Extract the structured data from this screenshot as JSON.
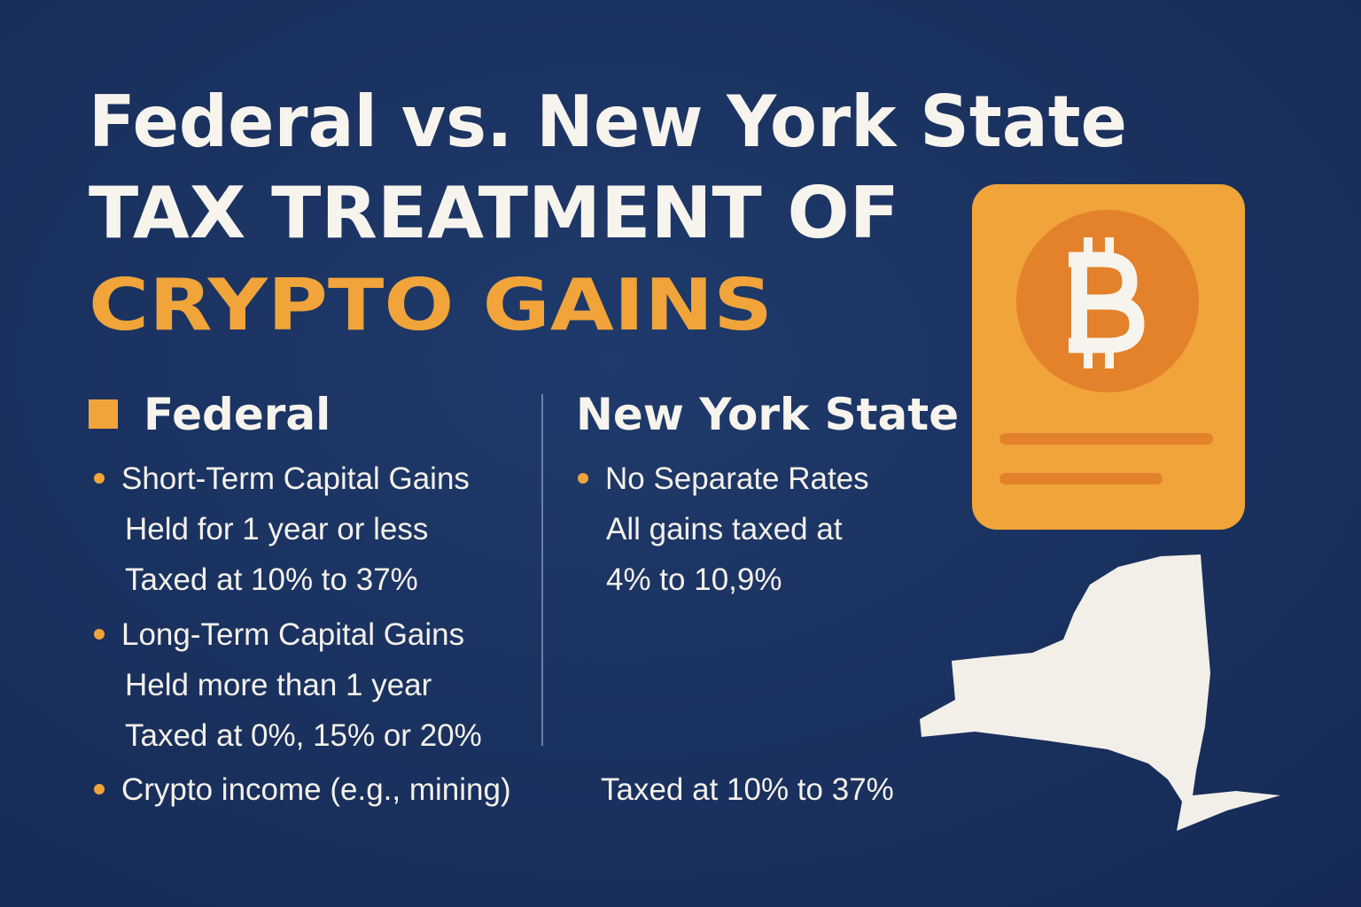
{
  "title": {
    "line1": "Federal vs. New York State",
    "line2": "TAX TREATMENT OF",
    "line3": "CRYPTO GAINS"
  },
  "federal": {
    "heading": "Federal",
    "items": [
      {
        "label": "Short-Term Capital Gains",
        "lines": [
          "Held for 1 year or less",
          "Taxed at 10% to 37%"
        ]
      },
      {
        "label": "Long-Term Capital Gains",
        "lines": [
          "Held more than 1 year",
          "Taxed at 0%, 15% or 20%"
        ]
      }
    ]
  },
  "new_york": {
    "heading": "New York State",
    "items": [
      {
        "label": "No Separate Rates",
        "lines": [
          "All gains taxed at",
          "4% to 10,9%"
        ]
      }
    ]
  },
  "income": {
    "label": "Crypto income (e.g., mining)",
    "note": "Taxed at 10% to 37%"
  }
}
